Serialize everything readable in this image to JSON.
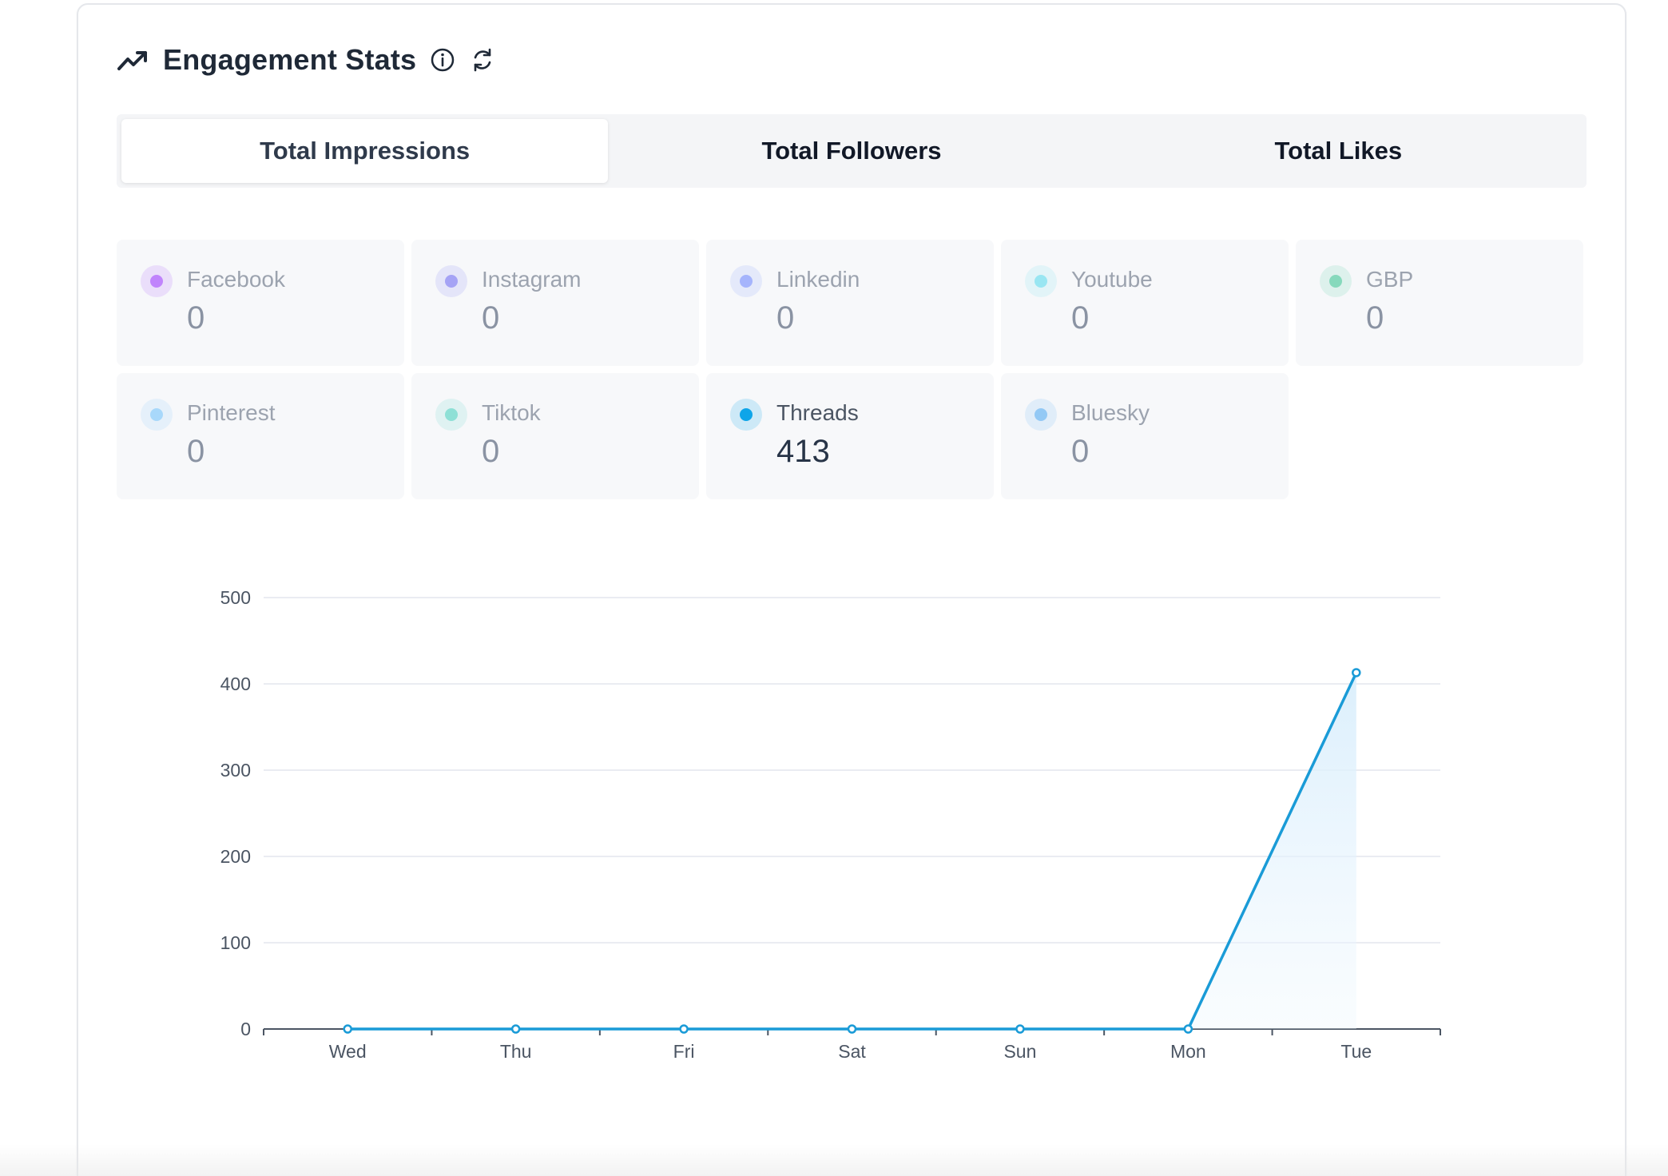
{
  "header": {
    "title": "Engagement Stats",
    "icons": [
      "trending-up-icon",
      "info-icon",
      "refresh-icon"
    ]
  },
  "tabs": [
    {
      "label": "Total Impressions",
      "active": true
    },
    {
      "label": "Total Followers",
      "active": false
    },
    {
      "label": "Total Likes",
      "active": false
    }
  ],
  "platforms": [
    {
      "name": "Facebook",
      "value": "0",
      "color": "#c084fc",
      "active": false
    },
    {
      "name": "Instagram",
      "value": "0",
      "color": "#a5a3f5",
      "active": false
    },
    {
      "name": "Linkedin",
      "value": "0",
      "color": "#a5b4fc",
      "active": false
    },
    {
      "name": "Youtube",
      "value": "0",
      "color": "#99e6f2",
      "active": false
    },
    {
      "name": "GBP",
      "value": "0",
      "color": "#86d9bc",
      "active": false
    },
    {
      "name": "Pinterest",
      "value": "0",
      "color": "#a8d8fb",
      "active": false
    },
    {
      "name": "Tiktok",
      "value": "0",
      "color": "#8ee0d6",
      "active": false
    },
    {
      "name": "Threads",
      "value": "413",
      "color": "#0ea5e9",
      "active": true
    },
    {
      "name": "Bluesky",
      "value": "0",
      "color": "#93c9f5",
      "active": false
    }
  ],
  "chart_data": {
    "type": "area",
    "categories": [
      "Wed",
      "Thu",
      "Fri",
      "Sat",
      "Sun",
      "Mon",
      "Tue"
    ],
    "values": [
      0,
      0,
      0,
      0,
      0,
      0,
      413
    ],
    "ylim": [
      0,
      500
    ],
    "yticks": [
      "0",
      "100",
      "200",
      "300",
      "400",
      "500"
    ],
    "grid": true,
    "line_color": "#1a9bd7",
    "fill_color": "#e8f4fd"
  }
}
